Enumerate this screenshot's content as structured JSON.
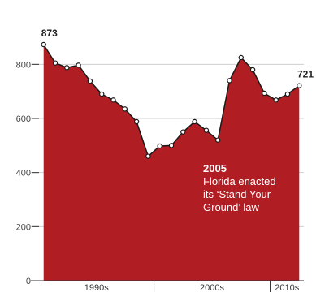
{
  "colors": {
    "area": "#b01e24",
    "marker": "#ffffff",
    "line": "#1a1a1a",
    "grid": "#cfcfcf",
    "axis": "#333333",
    "annotation_text": "#ffffff"
  },
  "chart_data": {
    "type": "area",
    "title": "",
    "xlabel": "",
    "ylabel": "",
    "x": [
      1990,
      1991,
      1992,
      1993,
      1994,
      1995,
      1996,
      1997,
      1998,
      1999,
      2000,
      2001,
      2002,
      2003,
      2004,
      2005,
      2006,
      2007,
      2008,
      2009,
      2010,
      2011,
      2012
    ],
    "values": [
      873,
      805,
      788,
      797,
      738,
      690,
      668,
      635,
      588,
      460,
      498,
      500,
      550,
      588,
      556,
      520,
      740,
      825,
      780,
      693,
      668,
      690,
      721
    ],
    "ylim": [
      0,
      900
    ],
    "yticks": [
      "0",
      "200",
      "400",
      "600",
      "800"
    ],
    "decades": [
      {
        "label": "1990s",
        "from": 1989.6,
        "to": 1999.5
      },
      {
        "label": "2000s",
        "from": 1999.5,
        "to": 2009.5
      },
      {
        "label": "2010s",
        "from": 2009.5,
        "to": 2012.4
      }
    ],
    "grid": true,
    "value_labels": [
      {
        "text": "873",
        "index": 0
      },
      {
        "text": "721",
        "index": 22
      }
    ],
    "annotation": {
      "year": "2005",
      "lines": [
        "Florida enacted",
        "its ‘Stand Your",
        "Ground’ law"
      ]
    }
  }
}
